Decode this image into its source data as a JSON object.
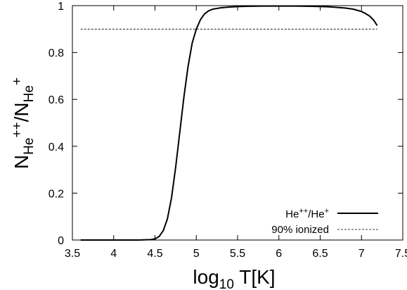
{
  "chart_data": {
    "type": "line",
    "x_label": {
      "base": "log",
      "sub": "10",
      "rest": " T[K]"
    },
    "y_label": {
      "n1": "N",
      "sub1": "He",
      "sup1": "++",
      "slash": "/",
      "n2": "N",
      "sub2": "He",
      "sup2": "+"
    },
    "xlim": [
      3.5,
      7.5
    ],
    "ylim": [
      0,
      1
    ],
    "x_ticks": [
      "3.5",
      "4",
      "4.5",
      "5",
      "5.5",
      "6",
      "6.5",
      "7",
      "7.5"
    ],
    "y_ticks": [
      "0",
      "0.2",
      "0.4",
      "0.6",
      "0.8",
      "1"
    ],
    "grid": false,
    "legend_position": "bottom-right",
    "series": [
      {
        "name": {
          "a": "He",
          "a_sup": "++",
          "b": "/He",
          "b_sup": "+"
        },
        "style": "solid",
        "color": "#000000",
        "x": [
          3.6,
          4.0,
          4.3,
          4.45,
          4.5,
          4.55,
          4.6,
          4.65,
          4.7,
          4.75,
          4.8,
          4.85,
          4.9,
          4.95,
          5.0,
          5.05,
          5.1,
          5.15,
          5.2,
          5.3,
          5.4,
          5.5,
          5.6,
          5.8,
          6.0,
          6.2,
          6.4,
          6.6,
          6.8,
          6.9,
          7.0,
          7.05,
          7.1,
          7.15,
          7.19
        ],
        "y": [
          0.0,
          0.0,
          0.0,
          0.002,
          0.005,
          0.015,
          0.04,
          0.09,
          0.18,
          0.31,
          0.46,
          0.61,
          0.74,
          0.84,
          0.9,
          0.94,
          0.965,
          0.978,
          0.985,
          0.991,
          0.994,
          0.996,
          0.997,
          0.998,
          0.998,
          0.998,
          0.997,
          0.995,
          0.99,
          0.985,
          0.975,
          0.966,
          0.955,
          0.937,
          0.915
        ]
      },
      {
        "name": "90% ionized",
        "style": "dashed",
        "color": "#000000",
        "x": [
          3.6,
          7.19
        ],
        "y": [
          0.9,
          0.9
        ]
      }
    ]
  }
}
